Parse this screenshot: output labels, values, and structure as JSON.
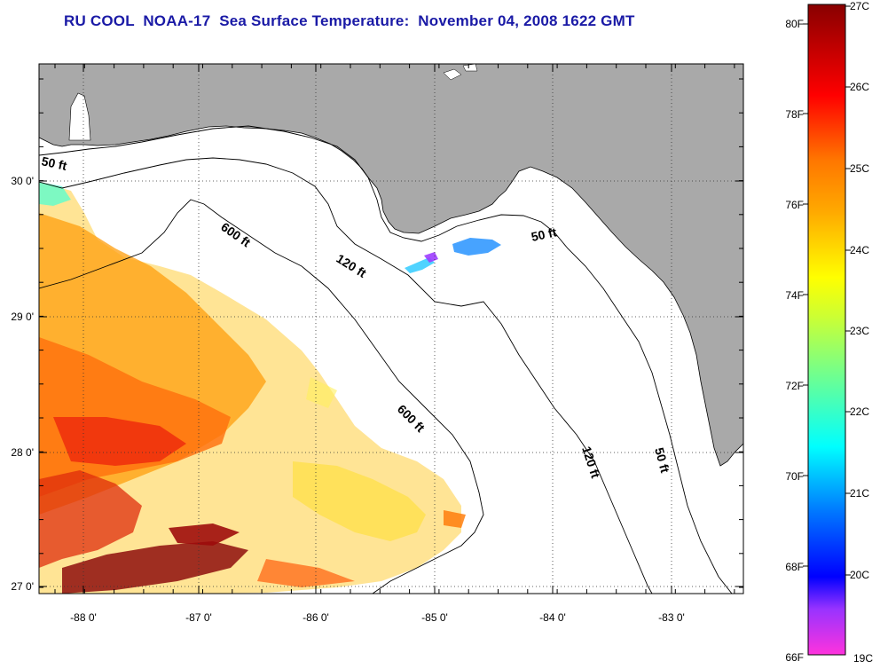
{
  "title": "RU COOL  NOAA-17  Sea Surface Temperature:  November 04, 2008 1622 GMT",
  "map": {
    "lon_ticks": [
      "-88 0'",
      "-87 0'",
      "-86 0'",
      "-85 0'",
      "-84 0'",
      "-83 0'"
    ],
    "lat_ticks": [
      "30 0'",
      "29 0'",
      "28 0'",
      "27 0'"
    ],
    "lon_range": [
      -88.3,
      -82.6
    ],
    "lat_range": [
      26.95,
      30.95
    ],
    "contours": [
      {
        "label": "50 ft",
        "depth_ft": 50
      },
      {
        "label": "120 ft",
        "depth_ft": 120
      },
      {
        "label": "600 ft",
        "depth_ft": 600
      }
    ],
    "land_color": "#a9a9a9",
    "water_color": "#ffffff",
    "grid": "dotted"
  },
  "colorbar": {
    "fahrenheit": [
      "80F",
      "78F",
      "76F",
      "74F",
      "72F",
      "70F",
      "68F",
      "66F"
    ],
    "celsius": [
      "27C",
      "26C",
      "25C",
      "24C",
      "23C",
      "22C",
      "21C",
      "20C",
      "19C"
    ],
    "range_c": [
      19,
      27
    ],
    "colors": [
      "#ff33cc",
      "#9933ff",
      "#0000ff",
      "#0099ff",
      "#00ffff",
      "#66ff99",
      "#ccff00",
      "#ffff00",
      "#ffcc00",
      "#ff9900",
      "#ff6600",
      "#ff0000",
      "#cc0000",
      "#880000"
    ]
  }
}
